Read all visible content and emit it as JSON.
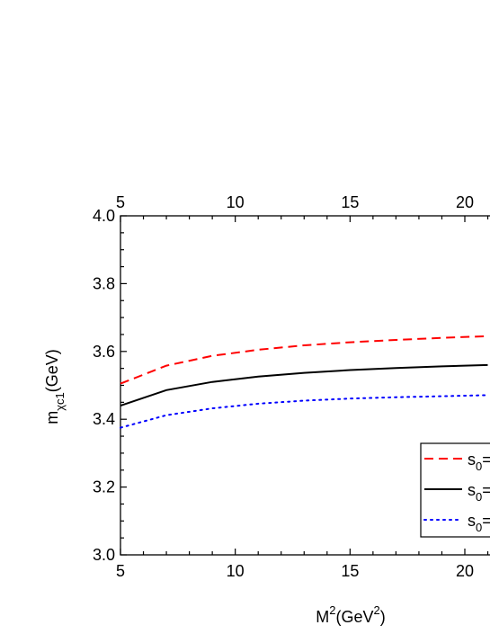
{
  "chart_data": {
    "type": "line",
    "xlabel": {
      "base": "M",
      "sup": "2",
      "unit_pre": "(GeV",
      "unit_sup": "2",
      "unit_post": ")"
    },
    "ylabel": {
      "base": "m",
      "sub": "χc1",
      "unit": "(GeV)"
    },
    "xlim": [
      5,
      21
    ],
    "ylim": [
      3.0,
      4.0
    ],
    "x_ticks": [
      5,
      10,
      15,
      20
    ],
    "x_tick_labels": [
      "5",
      "10",
      "15",
      "20"
    ],
    "y_ticks": [
      3.0,
      3.2,
      3.4,
      3.6,
      3.8,
      4.0
    ],
    "y_tick_labels": [
      "3.0",
      "3.2",
      "3.4",
      "3.6",
      "3.8",
      "4.0"
    ],
    "top_axis_mirrors_bottom": true,
    "grid": false,
    "legend_position": "bottom-right",
    "x": [
      5,
      7,
      9,
      11,
      13,
      15,
      17,
      19,
      21
    ],
    "series": [
      {
        "legend_text": "s0=",
        "color": "#ff0000",
        "dash": "dashed",
        "values": [
          3.505,
          3.558,
          3.587,
          3.605,
          3.618,
          3.627,
          3.634,
          3.64,
          3.645
        ]
      },
      {
        "legend_text": "s0=",
        "color": "#000000",
        "dash": "solid",
        "values": [
          3.44,
          3.486,
          3.51,
          3.526,
          3.537,
          3.545,
          3.551,
          3.556,
          3.56
        ]
      },
      {
        "legend_text": "s0=",
        "color": "#0000ff",
        "dash": "dotted",
        "values": [
          3.375,
          3.412,
          3.432,
          3.446,
          3.455,
          3.461,
          3.465,
          3.468,
          3.471
        ]
      }
    ]
  }
}
